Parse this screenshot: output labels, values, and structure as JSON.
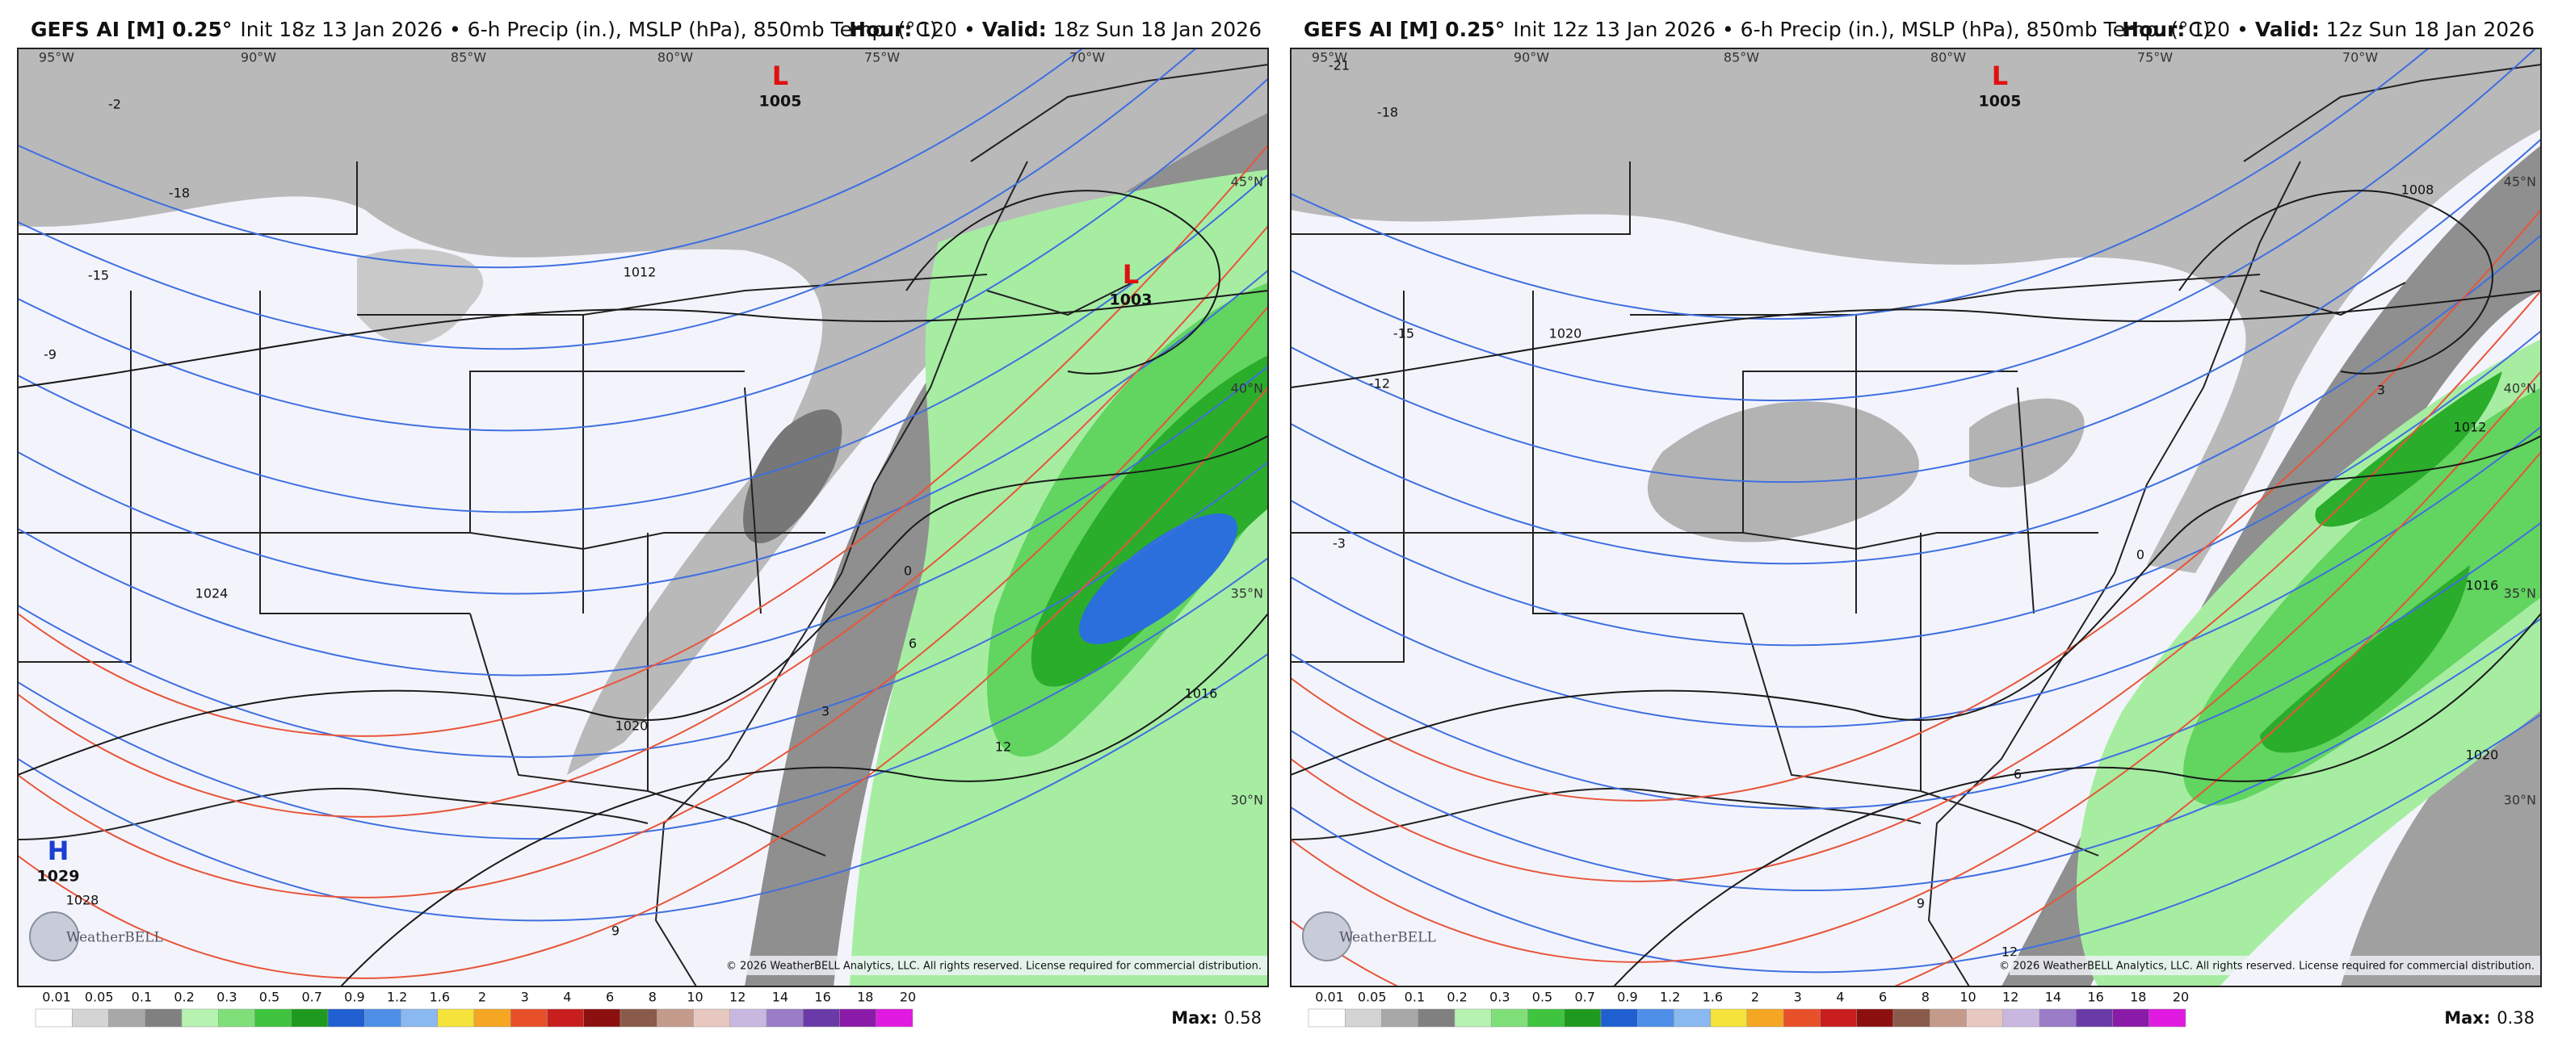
{
  "panels": [
    {
      "header": {
        "model": "GEFS AI [M] 0.25°",
        "init": "Init 18z 13 Jan 2026 • 6-h Precip (in.), MSLP (hPa), 850mb Temp. (°C)",
        "hour_label": "Hour:",
        "hour": "120",
        "separator": "•",
        "valid_label": "Valid:",
        "valid": "18z Sun 18 Jan 2026"
      },
      "lon_labels": [
        "95°W",
        "90°W",
        "85°W",
        "80°W",
        "75°W",
        "70°W"
      ],
      "lat_labels": [
        "45°N",
        "40°N",
        "35°N",
        "30°N"
      ],
      "centers": [
        {
          "letter": "L",
          "value": "1005"
        },
        {
          "letter": "L",
          "value": "1003"
        },
        {
          "letter": "H",
          "value": "1029"
        }
      ],
      "contour_labels": [
        "1012",
        "1024",
        "1016",
        "1020",
        "1028",
        "-18",
        "-15",
        "-9",
        "-2",
        "0",
        "3",
        "6",
        "9",
        "12"
      ],
      "logo": "WeatherBELL",
      "copyright": "© 2026 WeatherBELL Analytics, LLC. All rights reserved. License required for commercial distribution.",
      "max_label": "Max:",
      "max": "0.58"
    },
    {
      "header": {
        "model": "GEFS AI [M] 0.25°",
        "init": "Init 12z 13 Jan 2026 • 6-h Precip (in.), MSLP (hPa), 850mb Temp. (°C)",
        "hour_label": "Hour:",
        "hour": "120",
        "separator": "•",
        "valid_label": "Valid:",
        "valid": "12z Sun 18 Jan 2026"
      },
      "lon_labels": [
        "95°W",
        "90°W",
        "85°W",
        "80°W",
        "75°W",
        "70°W"
      ],
      "lat_labels": [
        "45°N",
        "40°N",
        "35°N",
        "30°N"
      ],
      "centers": [
        {
          "letter": "L",
          "value": "1005"
        }
      ],
      "contour_labels": [
        "1008",
        "1020",
        "1012",
        "1016",
        "1020",
        "-21",
        "-18",
        "-15",
        "-12",
        "-3",
        "0",
        "3",
        "6",
        "9",
        "12"
      ],
      "logo": "WeatherBELL",
      "copyright": "© 2026 WeatherBELL Analytics, LLC. All rights reserved. License required for commercial distribution.",
      "max_label": "Max:",
      "max": "0.38"
    }
  ],
  "legend": {
    "labels": [
      "0.01",
      "0.05",
      "0.1",
      "0.2",
      "0.3",
      "0.5",
      "0.7",
      "0.9",
      "1.2",
      "1.6",
      "2",
      "3",
      "4",
      "6",
      "8",
      "10",
      "12",
      "14",
      "16",
      "18",
      "20"
    ],
    "colors": [
      "#ffffff",
      "#d4d4d4",
      "#a8a8a8",
      "#808080",
      "#b6f2b0",
      "#7fe07a",
      "#3fc43f",
      "#1f9a1f",
      "#1f5fd0",
      "#4d8fe8",
      "#8ab8f0",
      "#f5e23a",
      "#f5a623",
      "#e8502a",
      "#c81e1e",
      "#8c1010",
      "#8a5a4a",
      "#c49a8a",
      "#e6c8c0",
      "#c8b8e0",
      "#9a7cc8",
      "#6a3aa8",
      "#8a1aa8",
      "#e01ae0"
    ]
  }
}
